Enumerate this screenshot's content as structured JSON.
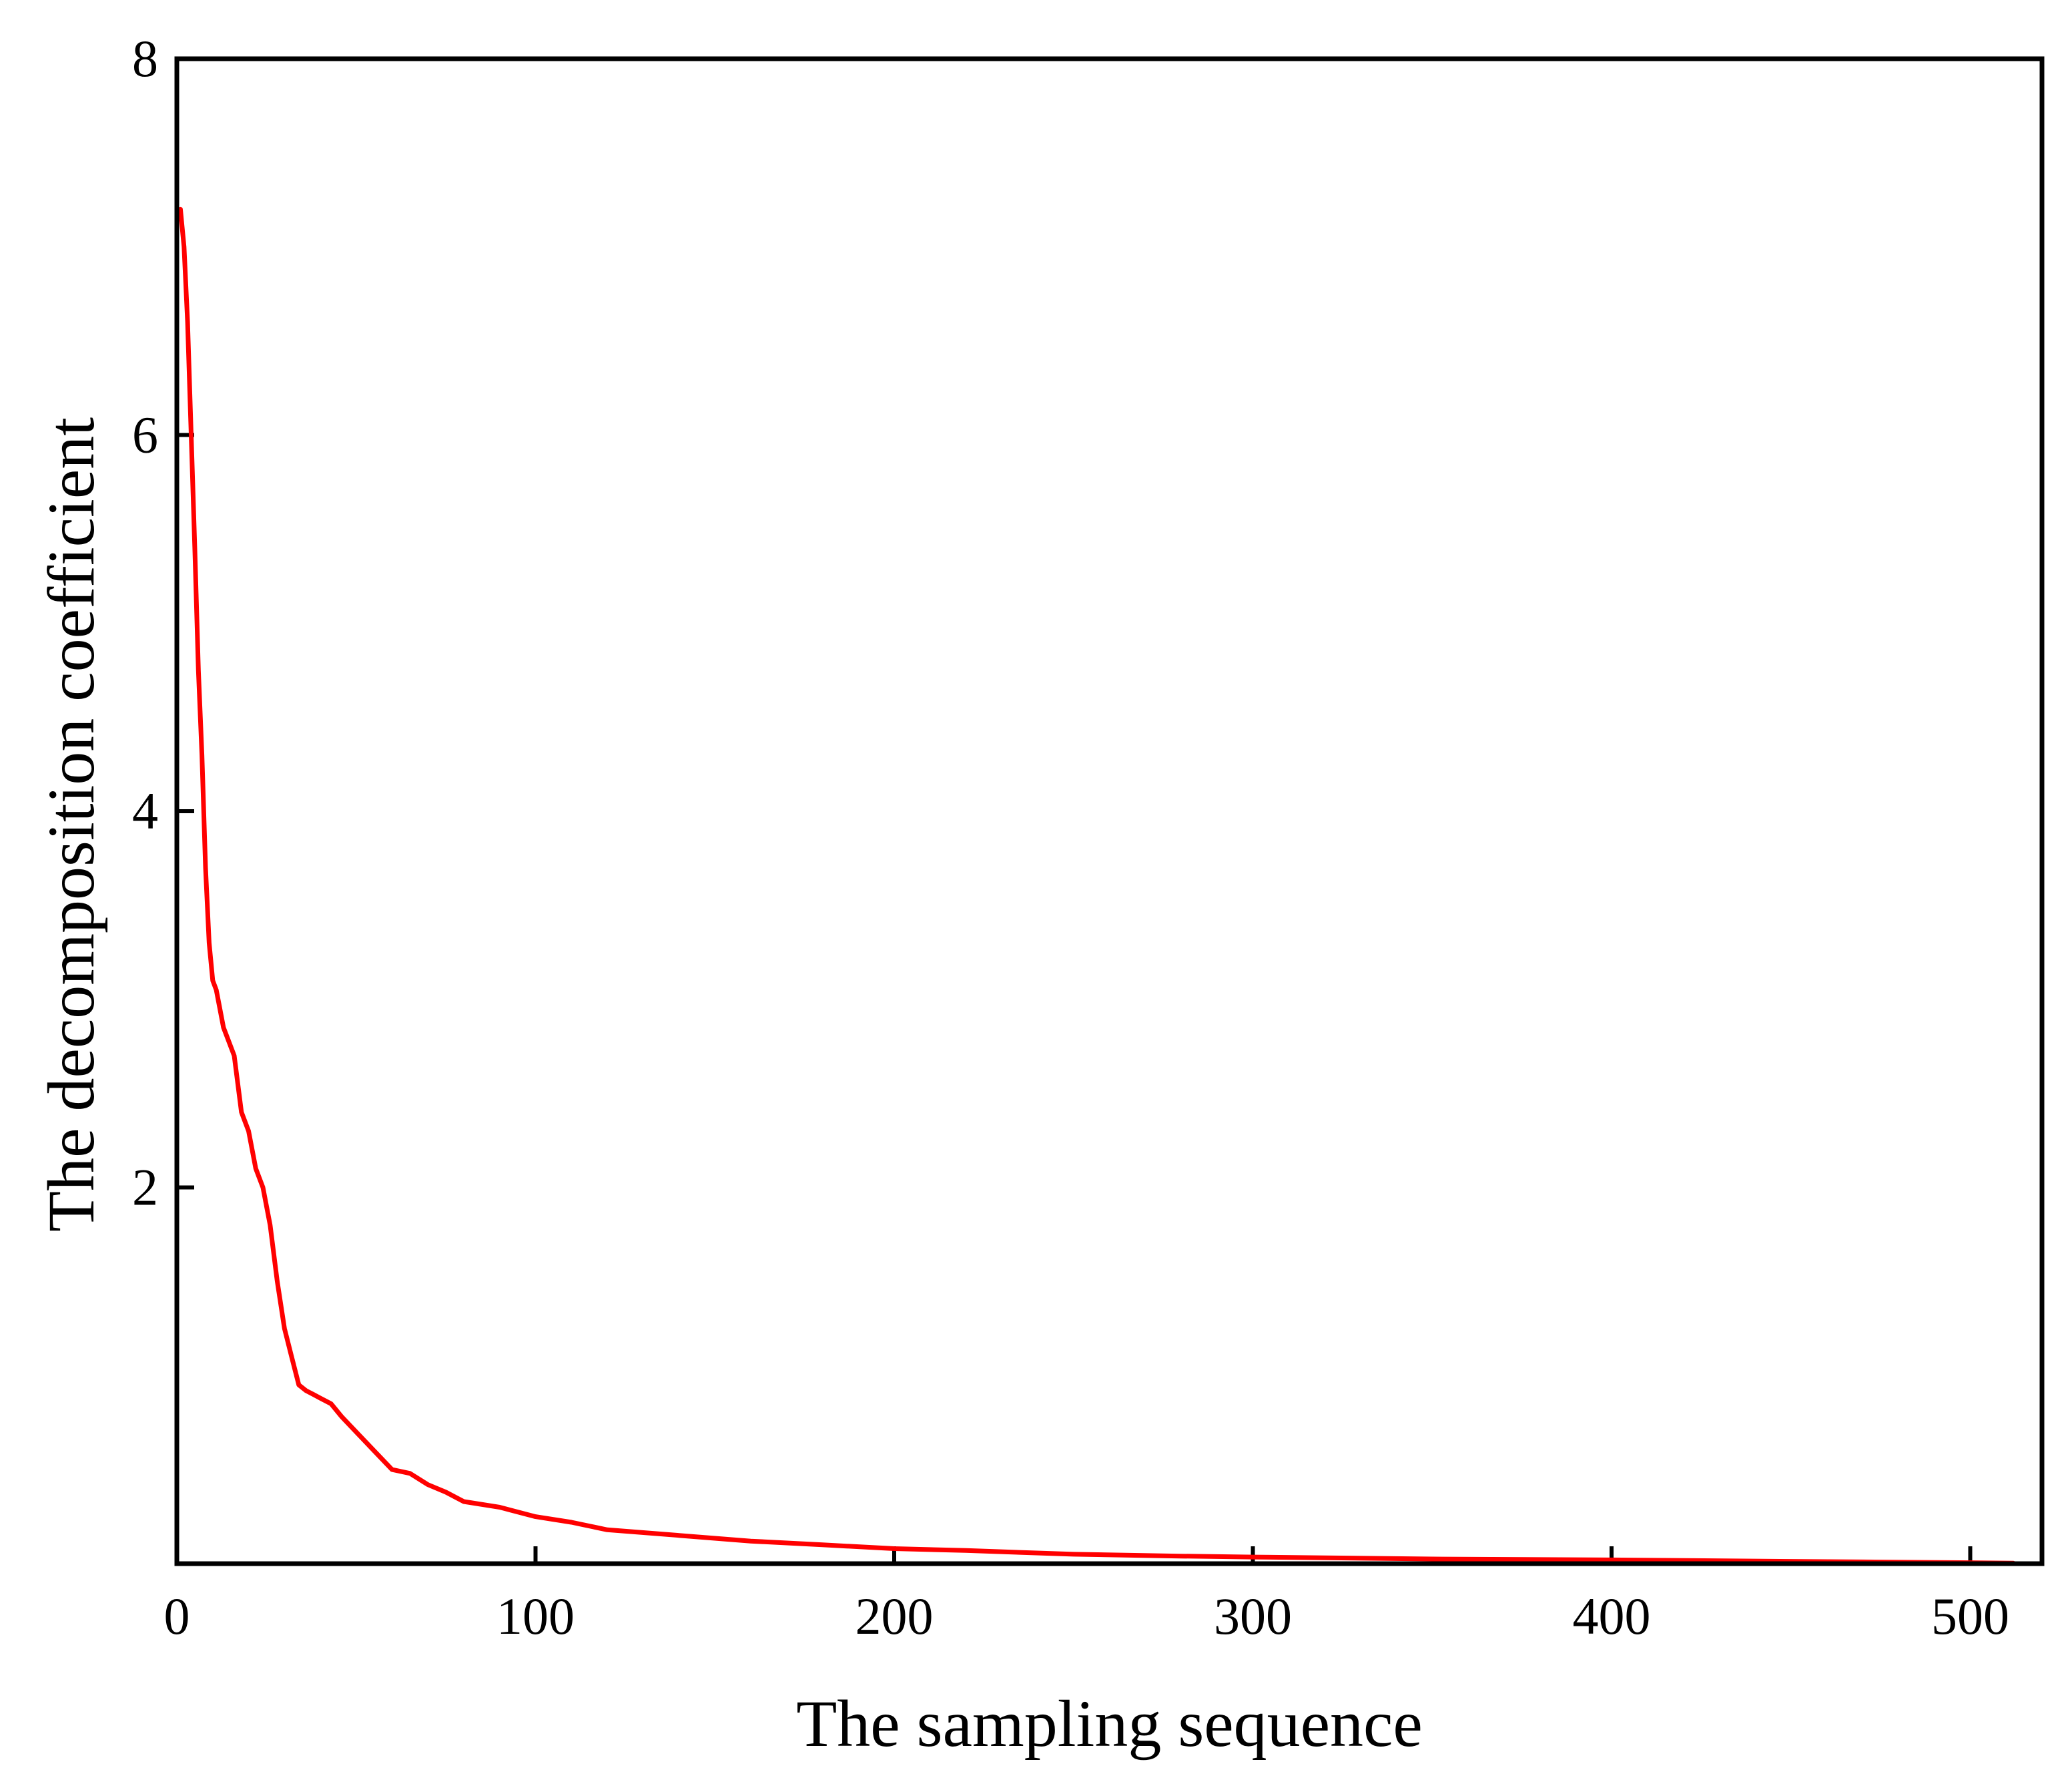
{
  "chart_data": {
    "type": "line",
    "title": "",
    "xlabel": "The sampling sequence",
    "ylabel": "The decomposition coefficient",
    "xlim": [
      0,
      520
    ],
    "ylim": [
      0,
      8
    ],
    "xticks": [
      0,
      100,
      200,
      300,
      400,
      500
    ],
    "yticks": [
      2,
      4,
      6,
      8
    ],
    "xtick_labels": [
      "0",
      "100",
      "200",
      "300",
      "400",
      "500"
    ],
    "ytick_labels": [
      "2",
      "4",
      "6",
      "8"
    ],
    "grid": false,
    "legend": "none",
    "line_color": "#ff0000",
    "series": [
      {
        "x": [
          1,
          2,
          3,
          4,
          5,
          6,
          7,
          8,
          9,
          10,
          11,
          12,
          13,
          14,
          16,
          18,
          20,
          22,
          24,
          26,
          28,
          30,
          32,
          34,
          36,
          38,
          40,
          43,
          46,
          50,
          55,
          60,
          65,
          70,
          75,
          80,
          90,
          100,
          110,
          120,
          140,
          160,
          180,
          200,
          220,
          250,
          280,
          300,
          350,
          400,
          450,
          500,
          512
        ],
        "y": [
          7.2,
          7.0,
          6.6,
          6.0,
          5.4,
          4.75,
          4.3,
          3.7,
          3.3,
          3.1,
          3.05,
          2.95,
          2.85,
          2.8,
          2.7,
          2.4,
          2.3,
          2.1,
          2.0,
          1.8,
          1.5,
          1.25,
          1.1,
          0.95,
          0.92,
          0.9,
          0.88,
          0.85,
          0.78,
          0.7,
          0.6,
          0.5,
          0.48,
          0.42,
          0.38,
          0.33,
          0.3,
          0.25,
          0.22,
          0.18,
          0.15,
          0.12,
          0.1,
          0.08,
          0.07,
          0.05,
          0.04,
          0.035,
          0.025,
          0.02,
          0.012,
          0.005,
          0.003
        ]
      }
    ]
  }
}
